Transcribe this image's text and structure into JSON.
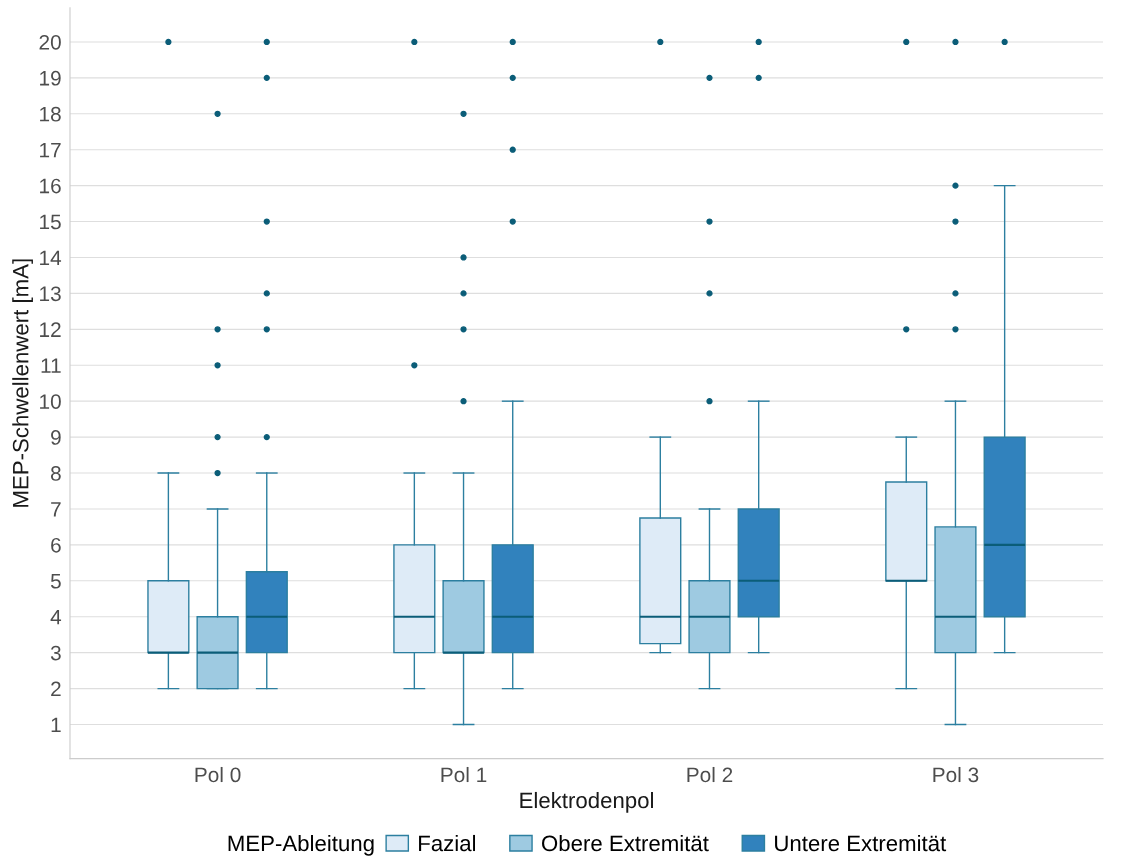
{
  "chart_data": {
    "type": "box",
    "xlabel": "Elektrodenpol",
    "ylabel": "MEP-Schwellenwert [mA]",
    "legend_title": "MEP-Ableitung",
    "categories": [
      "Pol 0",
      "Pol 1",
      "Pol 2",
      "Pol 3"
    ],
    "ylim": [
      0.05,
      20.95
    ],
    "yticks": [
      1,
      2,
      3,
      4,
      5,
      6,
      7,
      8,
      9,
      10,
      11,
      12,
      13,
      14,
      15,
      16,
      17,
      18,
      19,
      20
    ],
    "grid": "y",
    "legend": "bottom",
    "series": [
      {
        "name": "Fazial",
        "color": "#deebf7",
        "boxes": [
          {
            "low": 2,
            "q1": 3,
            "median": 3,
            "q3": 5,
            "high": 8,
            "outliers": [
              20
            ]
          },
          {
            "low": 2,
            "q1": 3,
            "median": 4,
            "q3": 6,
            "high": 8,
            "outliers": [
              20,
              11
            ]
          },
          {
            "low": 3,
            "q1": 3.25,
            "median": 4,
            "q3": 6.75,
            "high": 9,
            "outliers": [
              20
            ]
          },
          {
            "low": 2,
            "q1": 5,
            "median": 5,
            "q3": 7.75,
            "high": 9,
            "outliers": [
              20,
              12
            ]
          }
        ]
      },
      {
        "name": "Obere Extremität",
        "color": "#9ecae1",
        "boxes": [
          {
            "low": 2,
            "q1": 2,
            "median": 3,
            "q3": 4,
            "high": 7,
            "outliers": [
              18,
              12,
              11,
              9,
              8
            ]
          },
          {
            "low": 1,
            "q1": 3,
            "median": 3,
            "q3": 5,
            "high": 8,
            "outliers": [
              18,
              14,
              13,
              12,
              10
            ]
          },
          {
            "low": 2,
            "q1": 3,
            "median": 4,
            "q3": 5,
            "high": 7,
            "outliers": [
              19,
              15,
              13,
              10
            ]
          },
          {
            "low": 1,
            "q1": 3,
            "median": 4,
            "q3": 6.5,
            "high": 10,
            "outliers": [
              20,
              16,
              15,
              13,
              12
            ]
          }
        ]
      },
      {
        "name": "Untere Extremität",
        "color": "#3182bd",
        "boxes": [
          {
            "low": 2,
            "q1": 3,
            "median": 4,
            "q3": 5.25,
            "high": 8,
            "outliers": [
              20,
              19,
              15,
              13,
              12,
              9
            ]
          },
          {
            "low": 2,
            "q1": 3,
            "median": 4,
            "q3": 6,
            "high": 10,
            "outliers": [
              20,
              19,
              17,
              15
            ]
          },
          {
            "low": 3,
            "q1": 4,
            "median": 5,
            "q3": 7,
            "high": 10,
            "outliers": [
              20,
              19
            ]
          },
          {
            "low": 3,
            "q1": 4,
            "median": 6,
            "q3": 9,
            "high": 16,
            "outliers": [
              20
            ]
          }
        ]
      }
    ]
  }
}
